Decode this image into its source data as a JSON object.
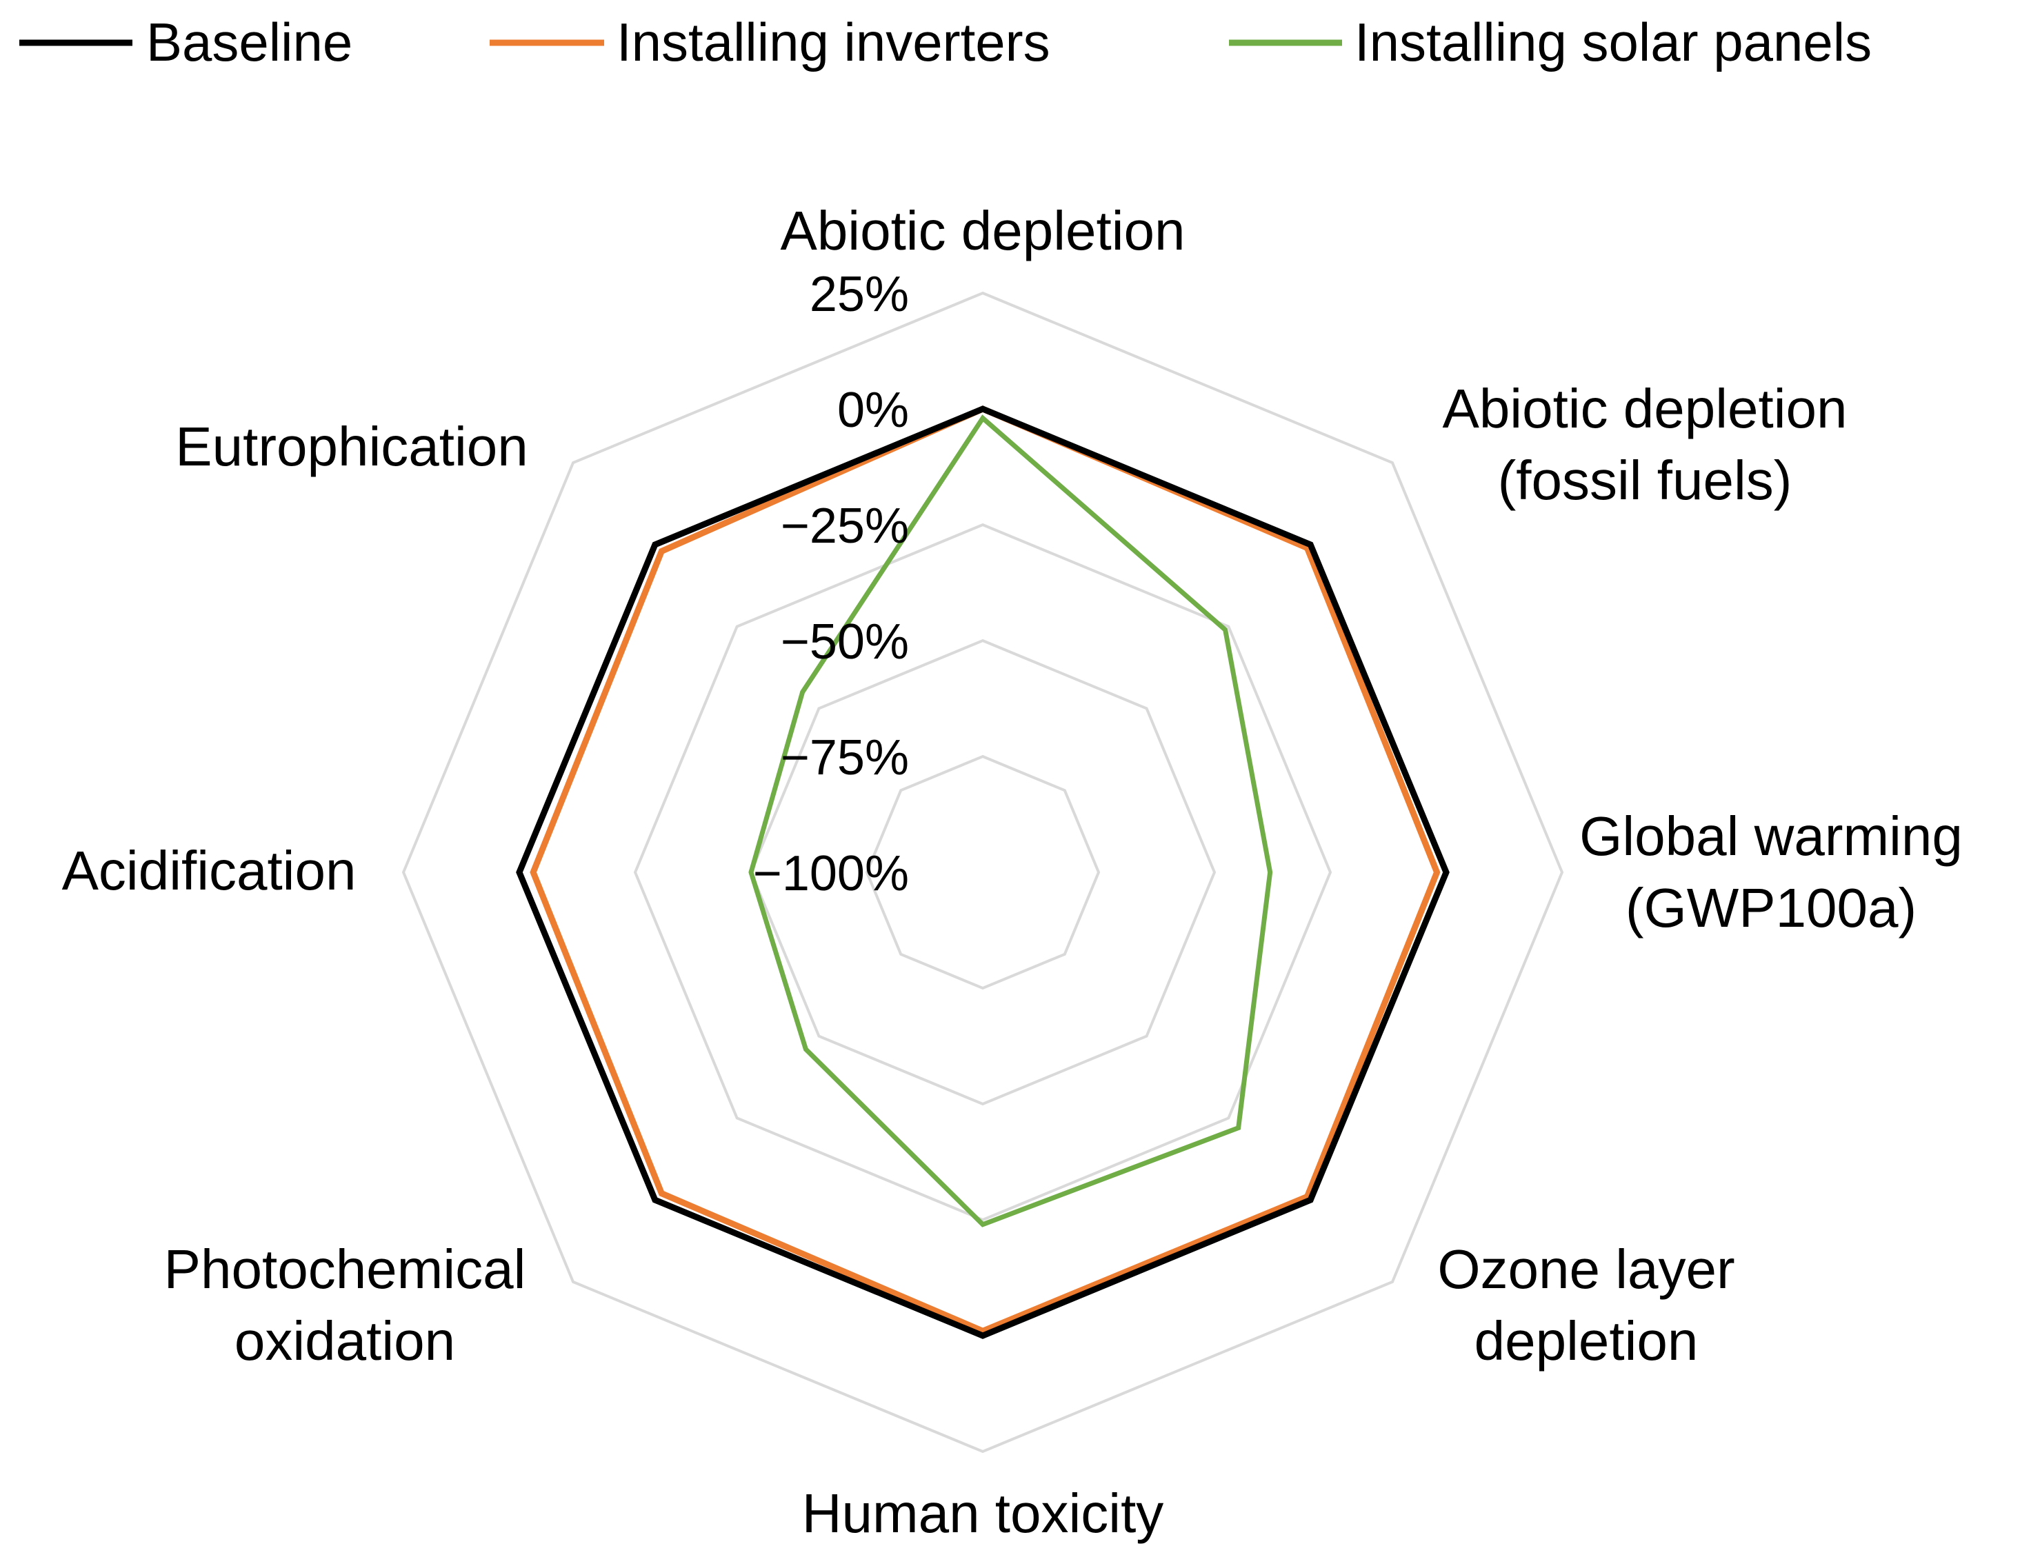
{
  "chart_data": {
    "type": "radar",
    "categories": [
      "Abiotic depletion",
      "Abiotic depletion\n(fossil fuels)",
      "Global warming\n(GWP100a)",
      "Ozone layer\ndepletion",
      "Human toxicity",
      "Photochemical\noxidation",
      "Acidification",
      "Eutrophication"
    ],
    "radial_ticks": [
      "25%",
      "0%",
      "−25%",
      "−50%",
      "−75%",
      "−100%"
    ],
    "rlim": [
      -100,
      25
    ],
    "grid": true,
    "legend_position": "top",
    "series": [
      {
        "name": "Baseline",
        "color": "#000000",
        "values": [
          0,
          0,
          0,
          0,
          0,
          0,
          0,
          0
        ]
      },
      {
        "name": "Installing inverters",
        "color": "#ed7d31",
        "values": [
          0,
          -1,
          -2,
          -1,
          -1,
          -2,
          -3,
          -2
        ]
      },
      {
        "name": "Installing solar panels",
        "color": "#70ad47",
        "values": [
          -2,
          -26,
          -38,
          -22,
          -24,
          -46,
          -50,
          -45
        ]
      }
    ],
    "grid_color": "#d9d9d9"
  }
}
